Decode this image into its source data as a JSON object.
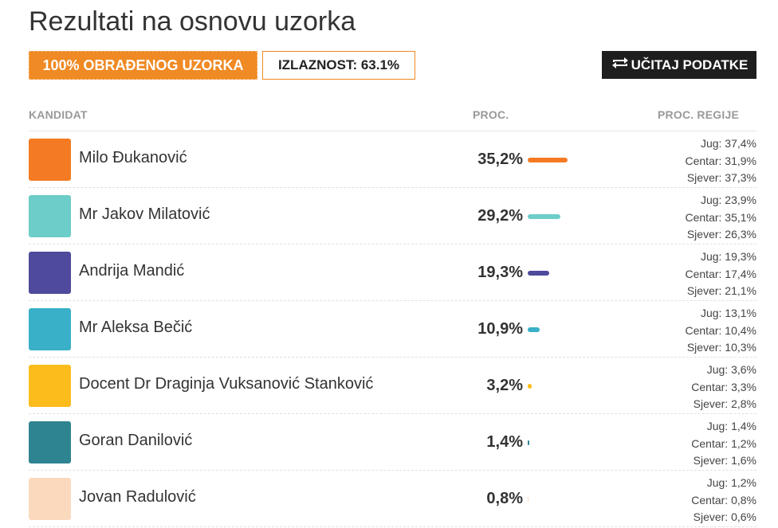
{
  "page": {
    "title": "Rezultati na osnovu uzorka",
    "processed_badge": "100% OBRAĐENOG UZORKA",
    "turnout_badge": "IZLAZNOST: 63.1%",
    "reload_button": "UČITAJ PODATKE"
  },
  "columns": {
    "candidate": "KANDIDAT",
    "percent": "PROC.",
    "region_percent": "PROC. REGIJE"
  },
  "colors": {
    "accent": "#f08a24",
    "button_dark": "#1e1e1e"
  },
  "candidates": [
    {
      "name": "Milo Đukanović",
      "percent_label": "35,2%",
      "percent": 35.2,
      "color": "#f47b23",
      "regions": [
        "Jug: 37,4%",
        "Centar: 31,9%",
        "Sjever: 37,3%"
      ]
    },
    {
      "name": "Mr Jakov Milatović",
      "percent_label": "29,2%",
      "percent": 29.2,
      "color": "#6dcdc8",
      "regions": [
        "Jug: 23,9%",
        "Centar: 35,1%",
        "Sjever: 26,3%"
      ]
    },
    {
      "name": "Andrija Mandić",
      "percent_label": "19,3%",
      "percent": 19.3,
      "color": "#4f4a9b",
      "regions": [
        "Jug: 19,3%",
        "Centar: 17,4%",
        "Sjever: 21,1%"
      ]
    },
    {
      "name": "Mr Aleksa Bečić",
      "percent_label": "10,9%",
      "percent": 10.9,
      "color": "#39b0c7",
      "regions": [
        "Jug: 13,1%",
        "Centar: 10,4%",
        "Sjever: 10,3%"
      ]
    },
    {
      "name": "Docent Dr Draginja Vuksanović Stanković",
      "percent_label": "3,2%",
      "percent": 3.2,
      "color": "#fbbc1c",
      "regions": [
        "Jug: 3,6%",
        "Centar: 3,3%",
        "Sjever: 2,8%"
      ]
    },
    {
      "name": "Goran Danilović",
      "percent_label": "1,4%",
      "percent": 1.4,
      "color": "#2f8492",
      "regions": [
        "Jug: 1,4%",
        "Centar: 1,2%",
        "Sjever: 1,6%"
      ]
    },
    {
      "name": "Jovan Radulović",
      "percent_label": "0,8%",
      "percent": 0.8,
      "color": "#fbd9bd",
      "regions": [
        "Jug: 1,2%",
        "Centar: 0,8%",
        "Sjever: 0,6%"
      ]
    }
  ]
}
